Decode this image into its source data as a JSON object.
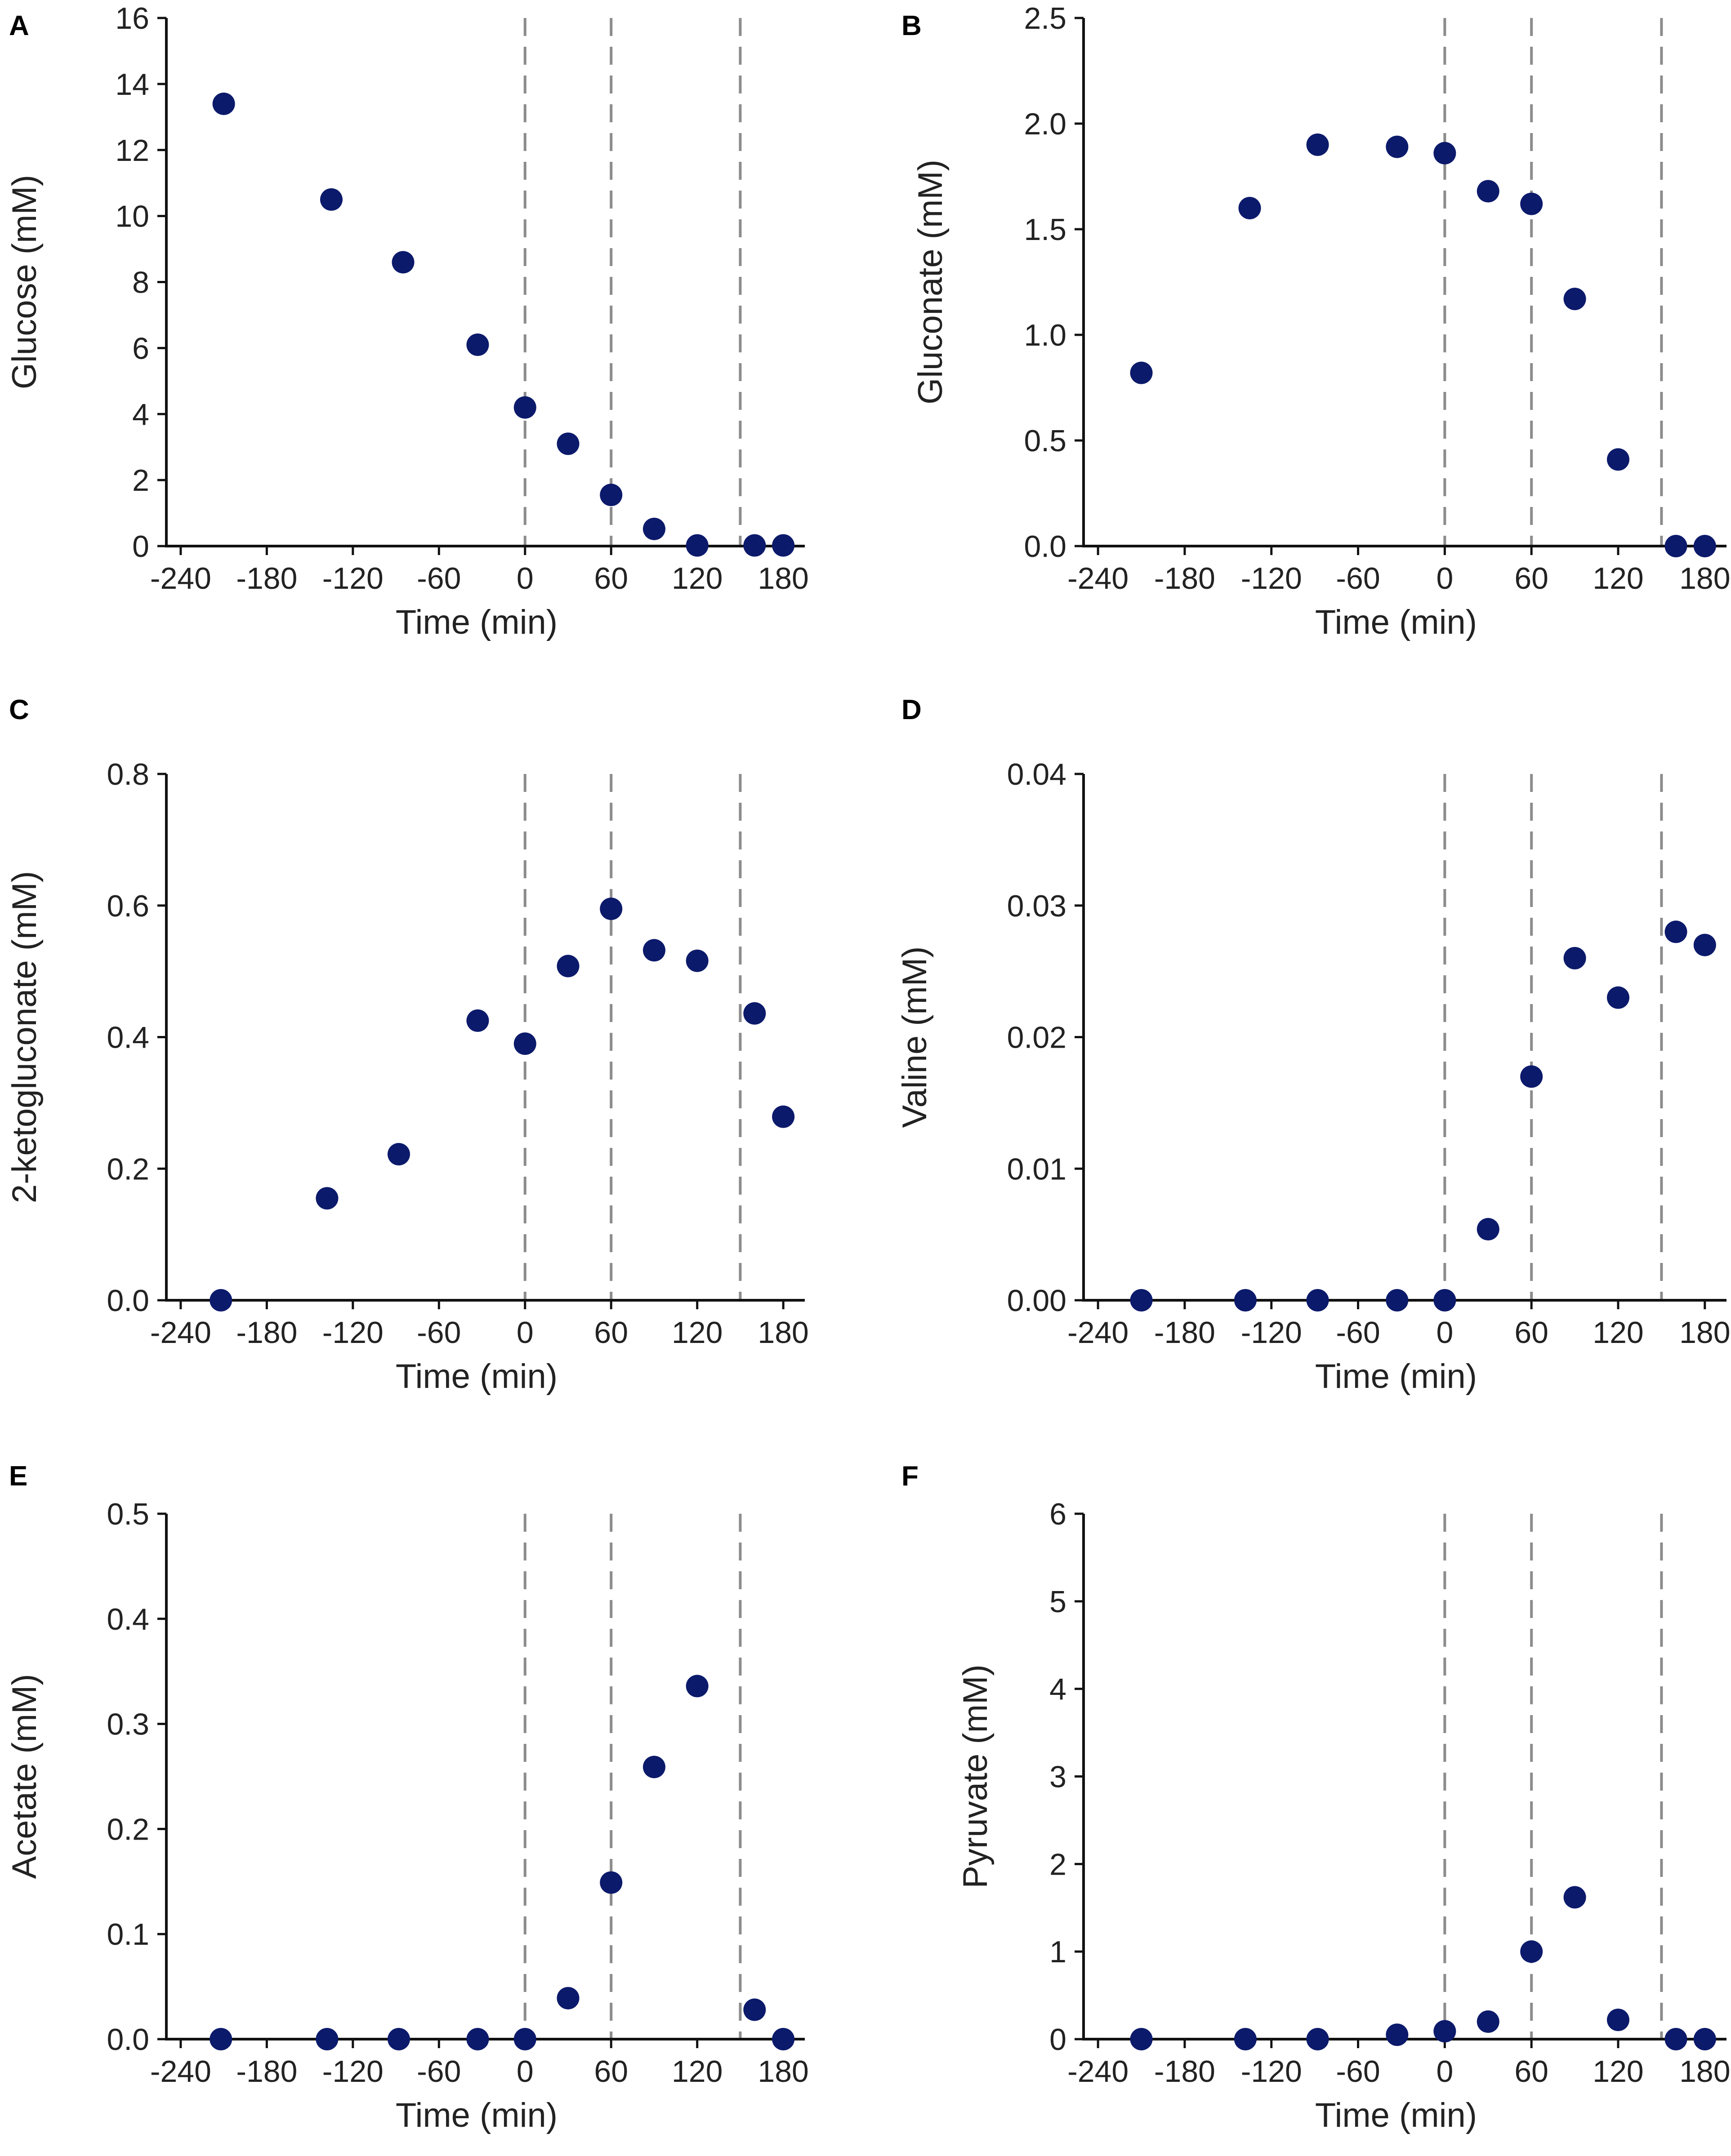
{
  "figure": {
    "point_color": "#0c1a6b",
    "guide_line_color": "#8c8c8c",
    "axis_color": "#111111"
  },
  "chart_data": [
    {
      "panel": "A",
      "type": "scatter",
      "xlabel": "Time (min)",
      "ylabel": "Glucose (mM)",
      "xlim": [
        -250,
        195
      ],
      "ylim": [
        0,
        16
      ],
      "x_ticks": [
        -240,
        -180,
        -120,
        -60,
        0,
        60,
        120,
        180
      ],
      "y_ticks": [
        0,
        2,
        4,
        6,
        8,
        10,
        12,
        14,
        16
      ],
      "y_tick_labels": [
        "0",
        "2",
        "4",
        "6",
        "8",
        "10",
        "12",
        "14",
        "16"
      ],
      "vlines": [
        0,
        60,
        150
      ],
      "x": [
        -210,
        -135,
        -85,
        -33,
        0,
        30,
        60,
        90,
        120,
        160,
        180
      ],
      "y": [
        13.4,
        10.5,
        8.6,
        6.1,
        4.2,
        3.1,
        1.55,
        0.52,
        0.02,
        0.02,
        0.02
      ]
    },
    {
      "panel": "B",
      "type": "scatter",
      "xlabel": "Time (min)",
      "ylabel": "Gluconate (mM)",
      "xlim": [
        -250,
        195
      ],
      "ylim": [
        0,
        2.5
      ],
      "x_ticks": [
        -240,
        -180,
        -120,
        -60,
        0,
        60,
        120,
        180
      ],
      "y_ticks": [
        0,
        0.5,
        1.0,
        1.5,
        2.0,
        2.5
      ],
      "y_tick_labels": [
        "0.0",
        "0.5",
        "1.0",
        "1.5",
        "2.0",
        "2.5"
      ],
      "vlines": [
        0,
        60,
        150
      ],
      "x": [
        -210,
        -135,
        -88,
        -33,
        0,
        30,
        60,
        90,
        120,
        160,
        180
      ],
      "y": [
        0.82,
        1.6,
        1.9,
        1.89,
        1.86,
        1.68,
        1.62,
        1.17,
        0.41,
        0.0,
        0.0
      ]
    },
    {
      "panel": "C",
      "type": "scatter",
      "xlabel": "Time (min)",
      "ylabel": "2-ketogluconate (mM)",
      "xlim": [
        -250,
        195
      ],
      "ylim": [
        0,
        0.8
      ],
      "x_ticks": [
        -240,
        -180,
        -120,
        -60,
        0,
        60,
        120,
        180
      ],
      "y_ticks": [
        0,
        0.2,
        0.4,
        0.6,
        0.8
      ],
      "y_tick_labels": [
        "0.0",
        "0.2",
        "0.4",
        "0.6",
        "0.8"
      ],
      "vlines": [
        0,
        60,
        150
      ],
      "x": [
        -212,
        -138,
        -88,
        -33,
        0,
        30,
        60,
        90,
        120,
        160,
        180
      ],
      "y": [
        0.0,
        0.155,
        0.222,
        0.425,
        0.39,
        0.508,
        0.595,
        0.532,
        0.516,
        0.436,
        0.279
      ]
    },
    {
      "panel": "D",
      "type": "scatter",
      "xlabel": "Time (min)",
      "ylabel": "Valine (mM)",
      "xlim": [
        -250,
        195
      ],
      "ylim": [
        0,
        0.04
      ],
      "x_ticks": [
        -240,
        -180,
        -120,
        -60,
        0,
        60,
        120,
        180
      ],
      "y_ticks": [
        0,
        0.01,
        0.02,
        0.03,
        0.04
      ],
      "y_tick_labels": [
        "0.00",
        "0.01",
        "0.02",
        "0.03",
        "0.04"
      ],
      "vlines": [
        0,
        60,
        150
      ],
      "x": [
        -210,
        -138,
        -88,
        -33,
        0,
        30,
        60,
        90,
        120,
        160,
        180
      ],
      "y": [
        0.0,
        0.0,
        0.0,
        0.0,
        0.0,
        0.0054,
        0.017,
        0.026,
        0.023,
        0.028,
        0.027
      ]
    },
    {
      "panel": "E",
      "type": "scatter",
      "xlabel": "Time (min)",
      "ylabel": "Acetate (mM)",
      "xlim": [
        -250,
        195
      ],
      "ylim": [
        0,
        0.5
      ],
      "x_ticks": [
        -240,
        -180,
        -120,
        -60,
        0,
        60,
        120,
        180
      ],
      "y_ticks": [
        0,
        0.1,
        0.2,
        0.3,
        0.4,
        0.5
      ],
      "y_tick_labels": [
        "0.0",
        "0.1",
        "0.2",
        "0.3",
        "0.4",
        "0.5"
      ],
      "vlines": [
        0,
        60,
        150
      ],
      "x": [
        -212,
        -138,
        -88,
        -33,
        0,
        30,
        60,
        90,
        120,
        160,
        180
      ],
      "y": [
        0.0,
        0.0,
        0.0,
        0.0,
        0.0,
        0.039,
        0.149,
        0.259,
        0.336,
        0.028,
        0.0
      ]
    },
    {
      "panel": "F",
      "type": "scatter",
      "xlabel": "Time (min)",
      "ylabel": "Pyruvate (mM)",
      "xlim": [
        -250,
        195
      ],
      "ylim": [
        0,
        6
      ],
      "x_ticks": [
        -240,
        -180,
        -120,
        -60,
        0,
        60,
        120,
        180
      ],
      "y_ticks": [
        0,
        1,
        2,
        3,
        4,
        5,
        6
      ],
      "y_tick_labels": [
        "0",
        "1",
        "2",
        "3",
        "4",
        "5",
        "6"
      ],
      "vlines": [
        0,
        60,
        150
      ],
      "x": [
        -210,
        -138,
        -88,
        -33,
        0,
        30,
        60,
        90,
        120,
        160,
        180
      ],
      "y": [
        0.0,
        0.0,
        0.0,
        0.05,
        0.09,
        0.2,
        1.0,
        1.62,
        0.22,
        0.0,
        0.0
      ]
    }
  ]
}
